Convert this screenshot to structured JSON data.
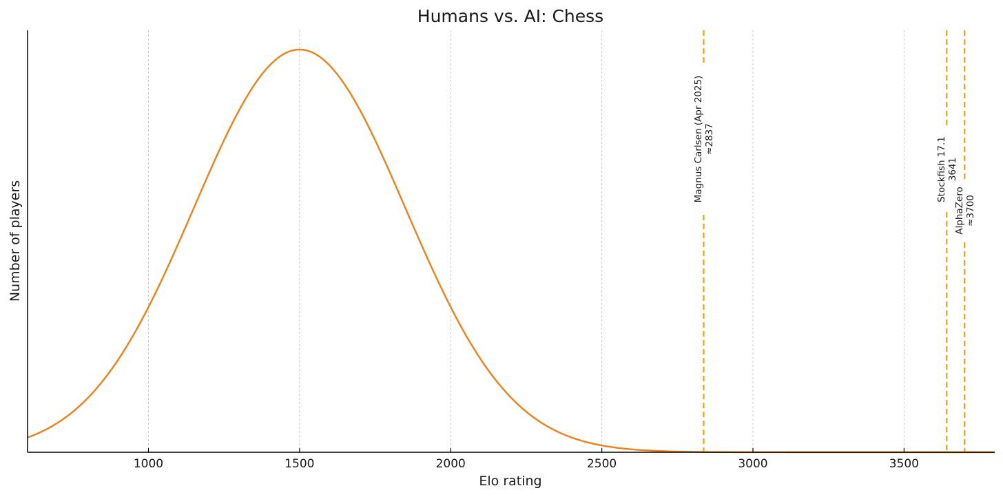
{
  "chart_data": {
    "type": "line",
    "title": "Humans vs. AI: Chess",
    "xlabel": "Elo rating",
    "ylabel": "Number of players",
    "xlim": [
      600,
      3800
    ],
    "x_ticks": [
      1000,
      1500,
      2000,
      2500,
      3000,
      3500
    ],
    "y_ticks_shown": false,
    "grid": "vertical-dashed",
    "curve": {
      "kind": "normal-distribution",
      "mean": 1500,
      "std": 350,
      "color": "#f07f16"
    },
    "markers": [
      {
        "x": 2837,
        "lines": [
          "Magnus Carlsen (Apr 2025)",
          "≈2837"
        ],
        "color": "#f5a300"
      },
      {
        "x": 3641,
        "lines": [
          "Stockfish 17.1",
          "3641"
        ],
        "color": "#f5a300"
      },
      {
        "x": 3700,
        "lines": [
          "AlphaZero",
          "≈3700"
        ],
        "color": "#f5a300"
      }
    ]
  }
}
